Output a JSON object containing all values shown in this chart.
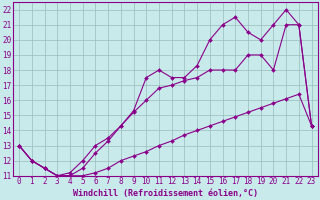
{
  "xlabel": "Windchill (Refroidissement éolien,°C)",
  "bg_color": "#c8eaea",
  "line_color": "#8b008b",
  "grid_color": "#9abcbc",
  "xlim": [
    -0.5,
    23.5
  ],
  "ylim": [
    11,
    22.5
  ],
  "xticks": [
    0,
    1,
    2,
    3,
    4,
    5,
    6,
    7,
    8,
    9,
    10,
    11,
    12,
    13,
    14,
    15,
    16,
    17,
    18,
    19,
    20,
    21,
    22,
    23
  ],
  "yticks": [
    11,
    12,
    13,
    14,
    15,
    16,
    17,
    18,
    19,
    20,
    21,
    22
  ],
  "line1_x": [
    0,
    1,
    2,
    3,
    4,
    5,
    6,
    7,
    8,
    9,
    10,
    11,
    12,
    13,
    14,
    15,
    16,
    17,
    18,
    19,
    20,
    21,
    22,
    23
  ],
  "line1_y": [
    13,
    12,
    11.5,
    11,
    11,
    11,
    11.2,
    11.5,
    12,
    12.3,
    12.6,
    13,
    13.3,
    13.7,
    14,
    14.3,
    14.6,
    14.9,
    15.2,
    15.5,
    15.8,
    16.1,
    16.4,
    14.3
  ],
  "line2_x": [
    0,
    1,
    2,
    3,
    4,
    5,
    6,
    7,
    8,
    9,
    10,
    11,
    12,
    13,
    14,
    15,
    16,
    17,
    18,
    19,
    20,
    21,
    22,
    23
  ],
  "line2_y": [
    13,
    12,
    11.5,
    11,
    11.2,
    12,
    13,
    13.5,
    14.3,
    15.2,
    16,
    16.8,
    17,
    17.3,
    17.5,
    18,
    18,
    18,
    19,
    19,
    18,
    21,
    21,
    14.3
  ],
  "line3_x": [
    0,
    1,
    2,
    3,
    4,
    5,
    6,
    7,
    8,
    9,
    10,
    11,
    12,
    13,
    14,
    15,
    16,
    17,
    18,
    19,
    20,
    21,
    22,
    23
  ],
  "line3_y": [
    13,
    12,
    11.5,
    11,
    11,
    11.5,
    12.5,
    13.3,
    14.3,
    15.3,
    17.5,
    18,
    17.5,
    17.5,
    18.3,
    20,
    21,
    21.5,
    20.5,
    20,
    21,
    22,
    21,
    14.3
  ],
  "marker": "D",
  "markersize": 2,
  "linewidth": 0.8,
  "xlabel_fontsize": 6,
  "tick_fontsize": 5.5
}
